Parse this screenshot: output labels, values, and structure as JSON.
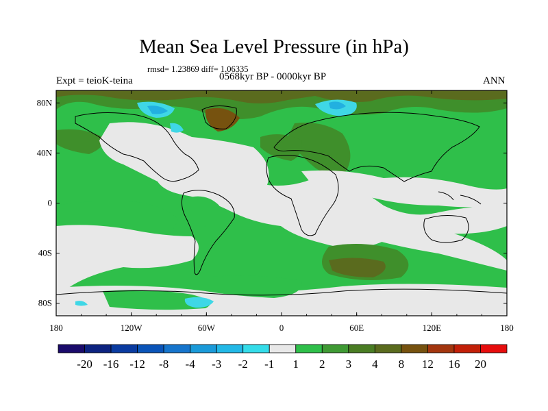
{
  "title": "Mean Sea Level Pressure (in hPa)",
  "stats_line": "rmsd= 1.23869 diff= 1.06335",
  "experiment": "Expt = teioK-teina",
  "period": "0568kyr BP - 0000kyr BP",
  "season": "ANN",
  "map": {
    "projection": "cylindrical equidistant",
    "lon_range": [
      -180,
      180
    ],
    "lat_range": [
      -90,
      90
    ],
    "x_ticks": [
      {
        "value": -180,
        "label": "180"
      },
      {
        "value": -120,
        "label": "120W"
      },
      {
        "value": -60,
        "label": "60W"
      },
      {
        "value": 0,
        "label": "0"
      },
      {
        "value": 60,
        "label": "60E"
      },
      {
        "value": 120,
        "label": "120E"
      },
      {
        "value": 180,
        "label": "180"
      }
    ],
    "y_ticks": [
      {
        "value": 80,
        "label": "80N"
      },
      {
        "value": 40,
        "label": "40N"
      },
      {
        "value": 0,
        "label": "0"
      },
      {
        "value": -40,
        "label": "40S"
      },
      {
        "value": -80,
        "label": "80S"
      }
    ],
    "field_colors": {
      "near_zero": "#e8e8e8",
      "pos_1_2": "#2fbf4a",
      "pos_3_4": "#3f8f2b",
      "pos_4_8": "#5a6b1e",
      "pos_8_12": "#76520f",
      "neg_2_1": "#3fd7e6",
      "neg_3_2": "#22b0e0",
      "coastline": "#000000",
      "background": "#ffffff"
    }
  },
  "colorbar": {
    "colors": [
      "#1a0b6b",
      "#0d2380",
      "#0a3ba0",
      "#0a54b8",
      "#1675cc",
      "#1a9ad9",
      "#22b8e6",
      "#34dce9",
      "#e8e8e8",
      "#2fbf4a",
      "#3f9a34",
      "#4a7d24",
      "#5a6b1e",
      "#76520f",
      "#a3360e",
      "#c22008",
      "#e60d0d"
    ],
    "labels": [
      "-20",
      "-16",
      "-12",
      "-8",
      "-4",
      "-3",
      "-2",
      "-1",
      "1",
      "2",
      "3",
      "4",
      "8",
      "12",
      "16",
      "20"
    ]
  }
}
